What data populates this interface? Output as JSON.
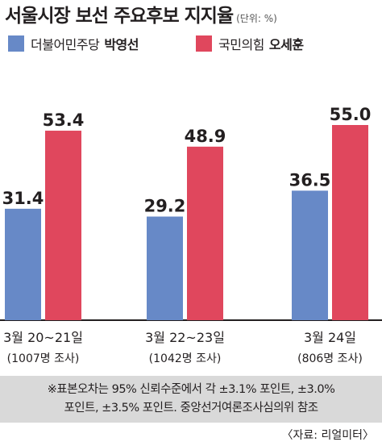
{
  "title": "서울시장 보선 주요후보 지지율",
  "unit": "(단위: %)",
  "legend": [
    {
      "party": "더불어민주당",
      "name": "박영선",
      "color": "#6789c7"
    },
    {
      "party": "국민의힘",
      "name": "오세훈",
      "color": "#e0475d"
    }
  ],
  "note_lines": [
    "※표본오차는 95% 신뢰수준에서 각 ±3.1% 포인트, ±3.0%",
    "포인트, ±3.5% 포인트. 중앙선거여론조사심의위 참조"
  ],
  "source": "〈자료: 리얼미터〉",
  "chart_data": {
    "type": "bar",
    "categories": [
      "3월 20~21일",
      "3월 22~23일",
      "3월 24일"
    ],
    "sublabels": [
      "(1007명 조사)",
      "(1042명 조사)",
      "(806명 조사)"
    ],
    "series": [
      {
        "name": "더불어민주당 박영선",
        "values": [
          31.4,
          29.2,
          36.5
        ],
        "color": "#6789c7"
      },
      {
        "name": "국민의힘 오세훈",
        "values": [
          53.4,
          48.9,
          55.0
        ],
        "color": "#e0475d"
      }
    ],
    "value_labels": [
      [
        "31.4",
        "29.2",
        "36.5"
      ],
      [
        "53.4",
        "48.9",
        "55.0"
      ]
    ],
    "ylim": [
      0,
      60
    ],
    "title": "서울시장 보선 주요후보 지지율",
    "xlabel": "",
    "ylabel": ""
  }
}
